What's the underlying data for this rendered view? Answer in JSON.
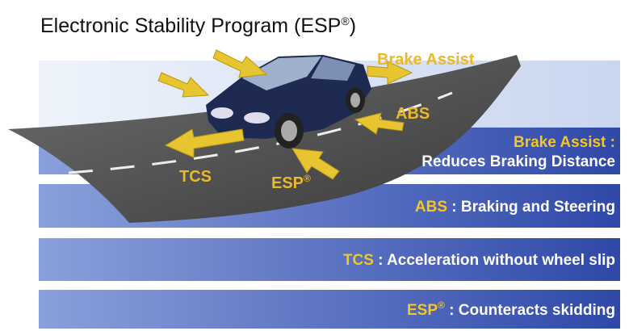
{
  "title": {
    "text": "Electronic Stability Program (ESP",
    "mark": "®",
    "end": ")"
  },
  "car_labels": {
    "brake_assist": "Brake Assist",
    "abs": "ABS",
    "tcs": "TCS",
    "esp": "ESP",
    "esp_mark": "®"
  },
  "bands": [
    {
      "key": "Brake Assist :",
      "desc": "Reduces Braking Distance"
    },
    {
      "key": "ABS",
      "desc": ": Braking and Steering"
    },
    {
      "key": "TCS",
      "desc": ": Acceleration without wheel slip"
    },
    {
      "key": "ESP",
      "mark": "®",
      "desc": ": Counteracts skidding"
    }
  ]
}
